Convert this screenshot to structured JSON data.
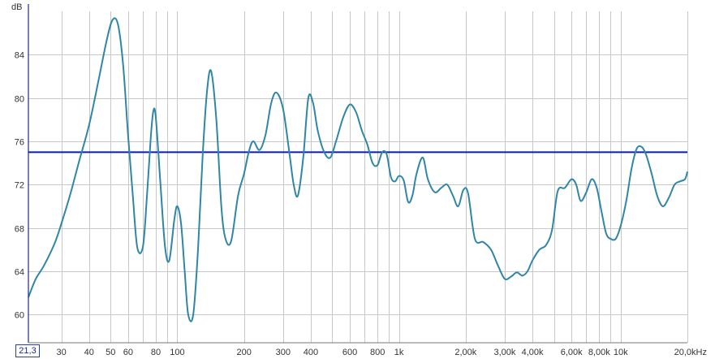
{
  "chart_data": {
    "type": "line",
    "xscale": "log",
    "xlim": [
      21.3,
      20000
    ],
    "ylim": [
      57.4,
      88.0
    ],
    "ylabel": "dB",
    "y_ticks": [
      60,
      64,
      68,
      72,
      76,
      80,
      84
    ],
    "x_ticks": [
      {
        "value": 30,
        "label": "30"
      },
      {
        "value": 40,
        "label": "40"
      },
      {
        "value": 50,
        "label": "50"
      },
      {
        "value": 60,
        "label": "60"
      },
      {
        "value": 80,
        "label": "80"
      },
      {
        "value": 100,
        "label": "100"
      },
      {
        "value": 200,
        "label": "200"
      },
      {
        "value": 300,
        "label": "300"
      },
      {
        "value": 400,
        "label": "400"
      },
      {
        "value": 600,
        "label": "600"
      },
      {
        "value": 800,
        "label": "800"
      },
      {
        "value": 1000,
        "label": "1k"
      },
      {
        "value": 2000,
        "label": "2,00k"
      },
      {
        "value": 3000,
        "label": "3,00k"
      },
      {
        "value": 4000,
        "label": "4,00k"
      },
      {
        "value": 6000,
        "label": "6,00k"
      },
      {
        "value": 8000,
        "label": "8,00k"
      },
      {
        "value": 10000,
        "label": "10k"
      },
      {
        "value": 20000,
        "label": "20,0kHz"
      }
    ],
    "minor_x_grid": [
      70,
      90,
      500,
      700,
      900,
      5000,
      7000,
      9000
    ],
    "cursor_label": "21,3",
    "grid": true,
    "colors": {
      "curve": "#2f86a6",
      "reference": "#0a1eaa",
      "grid": "#c8c8c8",
      "axis": "#1a2a8a"
    },
    "reference_line": {
      "y": 75.0
    },
    "series": [
      {
        "x": [
          21.3,
          23,
          25,
          28,
          30,
          33,
          36,
          40,
          44,
          48,
          51,
          54,
          57,
          60,
          63,
          66,
          70,
          73,
          76,
          78,
          80,
          84,
          88,
          92,
          97,
          100,
          104,
          108,
          112,
          118,
          124,
          130,
          136,
          142,
          150,
          158,
          165,
          175,
          188,
          200,
          210,
          220,
          235,
          250,
          265,
          280,
          300,
          320,
          335,
          350,
          370,
          390,
          410,
          430,
          460,
          490,
          520,
          560,
          600,
          640,
          680,
          720,
          760,
          800,
          840,
          880,
          920,
          960,
          1000,
          1050,
          1100,
          1150,
          1200,
          1280,
          1350,
          1450,
          1550,
          1650,
          1750,
          1850,
          1950,
          2050,
          2200,
          2400,
          2600,
          2800,
          3000,
          3200,
          3400,
          3600,
          3800,
          4000,
          4300,
          4600,
          4900,
          5200,
          5600,
          6000,
          6300,
          6600,
          7000,
          7400,
          7800,
          8200,
          8600,
          9000,
          9500,
          10000,
          10600,
          11200,
          11800,
          12400,
          13000,
          13800,
          14600,
          15500,
          16500,
          17500,
          18500,
          19500,
          20000
        ],
        "y": [
          61.6,
          63.3,
          64.5,
          66.6,
          68.4,
          71.2,
          74.1,
          77.5,
          81.5,
          85.3,
          87.2,
          86.8,
          83.0,
          76.5,
          71.0,
          66.2,
          66.3,
          71.0,
          76.5,
          78.8,
          78.2,
          72.0,
          66.3,
          65.0,
          68.8,
          70.0,
          68.4,
          64.0,
          60.0,
          60.0,
          66.0,
          74.5,
          80.5,
          82.5,
          78.0,
          70.0,
          67.0,
          66.8,
          71.0,
          73.0,
          75.0,
          76.0,
          75.2,
          76.6,
          79.5,
          80.5,
          79.0,
          75.0,
          72.0,
          71.0,
          74.5,
          80.0,
          79.5,
          77.0,
          75.0,
          74.5,
          76.0,
          78.2,
          79.4,
          78.7,
          77.0,
          75.7,
          74.0,
          73.8,
          75.0,
          74.8,
          72.7,
          72.3,
          72.8,
          72.4,
          70.4,
          71.0,
          73.0,
          74.5,
          72.5,
          71.3,
          71.7,
          72.0,
          71.0,
          70.0,
          71.5,
          71.2,
          67.0,
          66.7,
          66.0,
          64.5,
          63.3,
          63.5,
          63.9,
          63.6,
          64.0,
          65.0,
          66.0,
          66.4,
          67.8,
          71.4,
          71.7,
          72.5,
          72.0,
          70.5,
          71.3,
          72.5,
          71.7,
          69.5,
          67.5,
          67.0,
          67.0,
          68.2,
          70.5,
          73.5,
          75.3,
          75.5,
          74.8,
          73.0,
          71.0,
          70.0,
          70.8,
          72.0,
          72.3,
          72.5,
          73.2
        ]
      }
    ]
  }
}
